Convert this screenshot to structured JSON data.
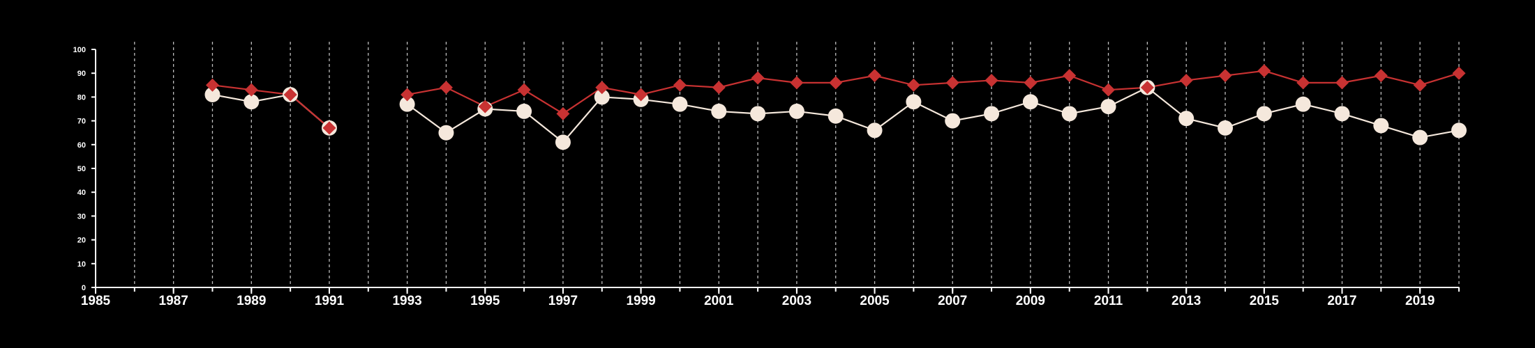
{
  "chart_data": {
    "type": "line",
    "title": "",
    "xlabel": "",
    "ylabel": "",
    "xlim": [
      1985,
      2020
    ],
    "ylim": [
      0,
      100
    ],
    "x_ticks": [
      "1985",
      "1987",
      "1989",
      "1991",
      "1993",
      "1995",
      "1997",
      "1999",
      "2001",
      "2003",
      "2005",
      "2007",
      "2009",
      "2011",
      "2013",
      "2015",
      "2017",
      "2019"
    ],
    "y_ticks": [
      "0",
      "10",
      "20",
      "30",
      "40",
      "50",
      "60",
      "70",
      "80",
      "90",
      "100"
    ],
    "grid": "vertical dashed lines at every year",
    "legend": "none",
    "series": [
      {
        "marker": "diamond",
        "color": "#c83232",
        "x": [
          1988,
          1989,
          1990,
          1991,
          1993,
          1994,
          1995,
          1996,
          1997,
          1998,
          1999,
          2000,
          2001,
          2002,
          2003,
          2004,
          2005,
          2006,
          2007,
          2008,
          2009,
          2010,
          2011,
          2012,
          2013,
          2014,
          2015,
          2016,
          2017,
          2018,
          2019,
          2020
        ],
        "values": [
          85,
          83,
          81,
          67,
          81,
          84,
          76,
          83,
          73,
          84,
          81,
          85,
          84,
          88,
          86,
          86,
          89,
          85,
          86,
          87,
          86,
          89,
          83,
          84,
          87,
          89,
          91,
          86,
          86,
          89,
          85,
          90
        ]
      },
      {
        "marker": "circle",
        "color": "#f5e8dc",
        "x": [
          1988,
          1989,
          1990,
          1991,
          1993,
          1994,
          1995,
          1996,
          1997,
          1998,
          1999,
          2000,
          2001,
          2002,
          2003,
          2004,
          2005,
          2006,
          2007,
          2008,
          2009,
          2010,
          2011,
          2012,
          2013,
          2014,
          2015,
          2016,
          2017,
          2018,
          2019,
          2020
        ],
        "values": [
          81,
          78,
          81,
          67,
          77,
          65,
          75,
          74,
          61,
          80,
          79,
          77,
          74,
          73,
          74,
          72,
          66,
          78,
          70,
          73,
          78,
          73,
          76,
          84,
          71,
          67,
          73,
          77,
          73,
          68,
          63,
          66
        ]
      }
    ]
  }
}
